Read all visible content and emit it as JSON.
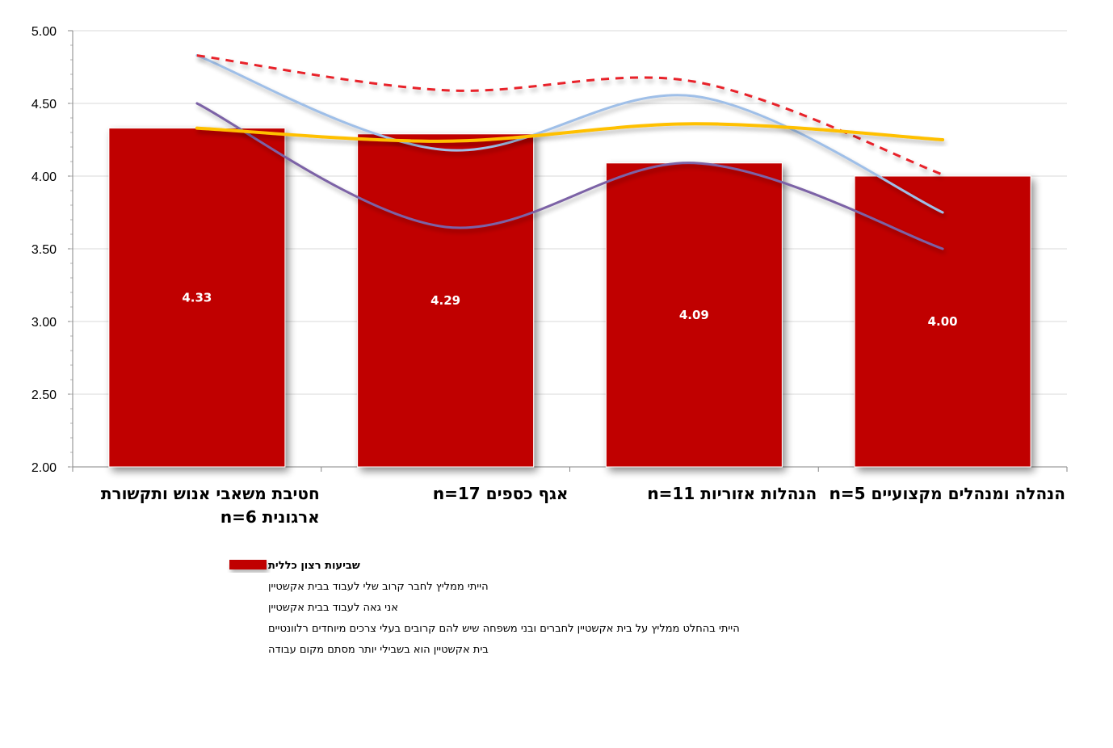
{
  "chart_data": {
    "type": "bar",
    "categories": [
      [
        "חטיבת משאבי אנוש ותקשורת",
        "ארגונית   n=6"
      ],
      [
        "אגף כספים   n=17"
      ],
      [
        "הנהלות אזוריות   n=11"
      ],
      [
        "הנהלה ומנהלים מקצועיים   n=5"
      ]
    ],
    "ylim": [
      2.0,
      5.0
    ],
    "yticks": [
      "2.00",
      "2.50",
      "3.00",
      "3.50",
      "4.00",
      "4.50",
      "5.00"
    ],
    "grid": true,
    "legend_position": "bottom",
    "series": [
      {
        "name": "שביעות רצון כללית",
        "type": "bar",
        "color": "#c00000",
        "values": [
          4.33,
          4.29,
          4.09,
          4.0
        ],
        "data_labels": [
          "4.33",
          "4.29",
          "4.09",
          "4.00"
        ]
      },
      {
        "name": "הייתי ממליץ לחבר קרוב שלי לעבוד בבית אקשטיין",
        "type": "line",
        "color": "#7b62a6",
        "values": [
          4.5,
          3.65,
          4.09,
          3.5
        ]
      },
      {
        "name": "אני גאה לעבוד בבית אקשטיין",
        "type": "line",
        "color": "#9fbfe8",
        "values": [
          4.83,
          4.18,
          4.55,
          3.75
        ]
      },
      {
        "name": "הייתי בהחלט ממליץ על בית אקשטיין לחברים ובני משפחה שיש להם קרובים בעלי צרכים מיוחדים רלוונטיים",
        "type": "line",
        "color": "#e8232a",
        "dashed": true,
        "values": [
          4.83,
          4.59,
          4.65,
          4.01
        ]
      },
      {
        "name": "בית אקשטיין הוא בשבילי יותר מסתם מקום עבודה",
        "type": "line",
        "color": "#ffc000",
        "values": [
          4.33,
          4.24,
          4.36,
          4.25
        ]
      }
    ]
  }
}
